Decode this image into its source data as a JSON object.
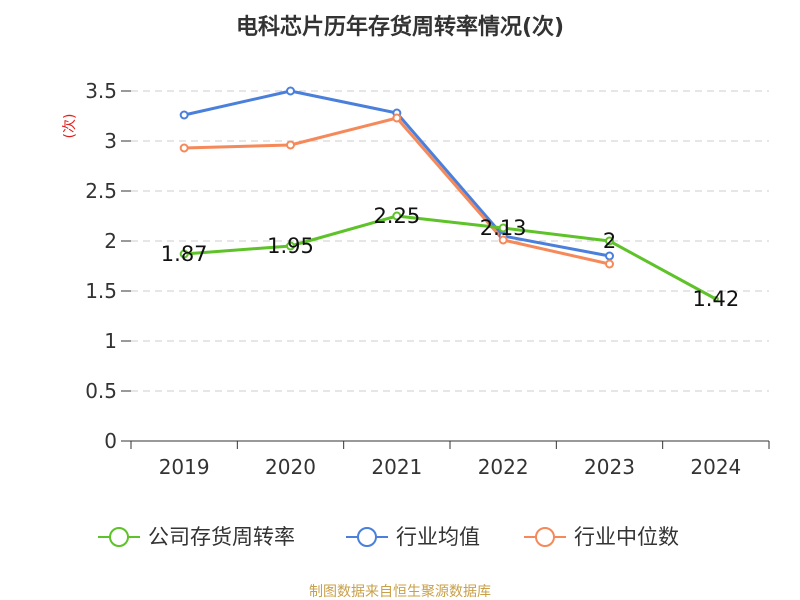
{
  "chart_data": {
    "type": "line",
    "title": "电科芯片历年存货周转率情况(次)",
    "ylabel": "(次)",
    "xlabel": "",
    "categories": [
      "2019",
      "2020",
      "2021",
      "2022",
      "2023",
      "2024"
    ],
    "ylim": [
      0,
      3.5
    ],
    "yticks": [
      0,
      0.5,
      1,
      1.5,
      2,
      2.5,
      3,
      3.5
    ],
    "ytick_labels": [
      "0",
      "0.5",
      "1",
      "1.5",
      "2",
      "2.5",
      "3",
      "3.5"
    ],
    "grid": true,
    "legend_position": "bottom",
    "series": [
      {
        "name": "公司存货周转率",
        "color": "#5ec229",
        "values": [
          1.87,
          1.95,
          2.25,
          2.13,
          2.0,
          1.42
        ],
        "labels": [
          "1.87",
          "1.95",
          "2.25",
          "2.13",
          "2",
          "1.42"
        ]
      },
      {
        "name": "行业均值",
        "color": "#4a7fdc",
        "values": [
          3.26,
          3.5,
          3.28,
          2.05,
          1.85,
          null
        ],
        "labels": []
      },
      {
        "name": "行业中位数",
        "color": "#f5895a",
        "values": [
          2.93,
          2.96,
          3.23,
          2.01,
          1.77,
          null
        ],
        "labels": []
      }
    ]
  },
  "source_note": "制图数据来自恒生聚源数据库"
}
